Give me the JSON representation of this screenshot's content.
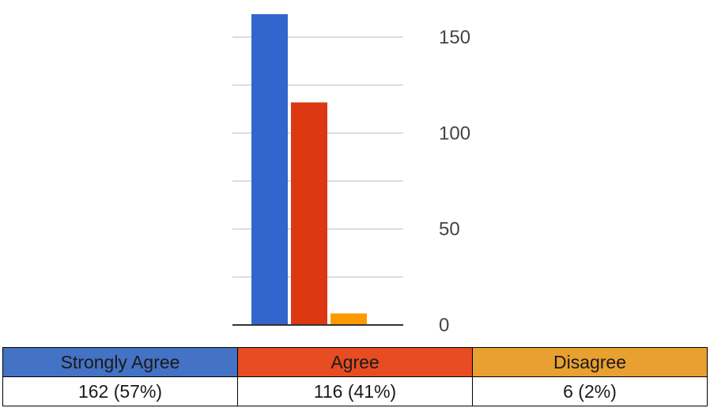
{
  "chart_data": {
    "type": "bar",
    "categories": [
      "Strongly Agree",
      "Agree",
      "Disagree"
    ],
    "values": [
      162,
      116,
      6
    ],
    "value_labels": [
      "162 (57%)",
      "116 (41%)",
      "6 (2%)"
    ],
    "colors": [
      "#3366cc",
      "#dc3912",
      "#ff9900"
    ],
    "header_colors": [
      "#4472c4",
      "#e84c22",
      "#e8a030"
    ],
    "y_ticks": [
      "0",
      "50",
      "100",
      "150"
    ],
    "ylim": [
      0,
      162
    ],
    "y_axis_position": "right",
    "grid": true,
    "title": "",
    "xlabel": "",
    "ylabel": ""
  }
}
